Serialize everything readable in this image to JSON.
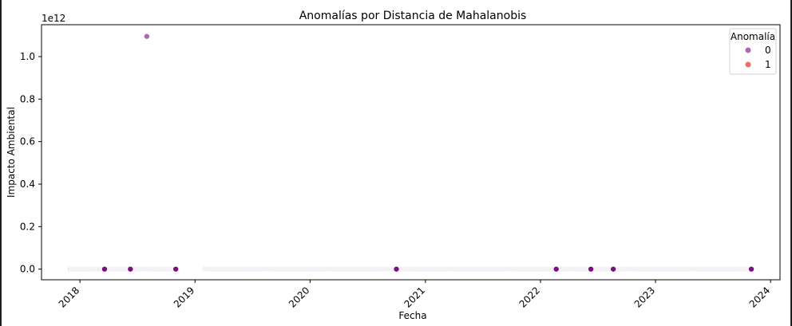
{
  "chart_data": {
    "type": "scatter",
    "title": "Anomalías por Distancia de Mahalanobis",
    "xlabel": "Fecha",
    "ylabel": "Impacto Ambiental",
    "y_offset_text": "1e12",
    "y_scale_factor": 1000000000000.0,
    "xlim": [
      "2017-09-01",
      "2024-01-31"
    ],
    "ylim": [
      -0.05,
      1.15
    ],
    "y_ticks": [
      0.0,
      0.2,
      0.4,
      0.6,
      0.8,
      1.0
    ],
    "y_tick_labels": [
      "0.0",
      "0.2",
      "0.4",
      "0.6",
      "0.8",
      "1.0"
    ],
    "x_ticks": [
      "2018-01-01",
      "2019-01-01",
      "2020-01-01",
      "2021-01-01",
      "2022-01-01",
      "2023-01-01",
      "2024-01-01"
    ],
    "x_tick_labels": [
      "2018",
      "2019",
      "2020",
      "2021",
      "2022",
      "2023",
      "2024"
    ],
    "x_tick_rotation": 45,
    "grid": false,
    "legend": {
      "title": "Anomalía",
      "placement": "top-right",
      "entries": [
        {
          "label": "0",
          "color": "#b265b9"
        },
        {
          "label": "1",
          "color": "#f26a6a"
        }
      ]
    },
    "colors": {
      "normal": "#f1edf4",
      "highlight": "#7b0f7f",
      "outlier": "#b265b9"
    },
    "segments": [
      {
        "start": "2017-12-01",
        "end": "2018-11-01",
        "y": 0.0,
        "anomalia": 0
      },
      {
        "start": "2019-02-01",
        "end": "2023-11-01",
        "y": 0.0,
        "anomalia": 0
      }
    ],
    "highlighted_points": [
      {
        "x": "2018-03-20",
        "y": 0.0,
        "anomalia": 0
      },
      {
        "x": "2018-06-10",
        "y": 0.0,
        "anomalia": 0
      },
      {
        "x": "2018-11-01",
        "y": 0.0,
        "anomalia": 0
      },
      {
        "x": "2020-10-01",
        "y": 0.0,
        "anomalia": 0
      },
      {
        "x": "2022-02-20",
        "y": 0.0,
        "anomalia": 0
      },
      {
        "x": "2022-06-10",
        "y": 0.0,
        "anomalia": 0
      },
      {
        "x": "2022-08-20",
        "y": 0.0,
        "anomalia": 0
      },
      {
        "x": "2023-11-01",
        "y": 0.0,
        "anomalia": 0
      }
    ],
    "outlier_points": [
      {
        "x": "2018-08-01",
        "y": 1.095,
        "anomalia": 0
      }
    ]
  }
}
